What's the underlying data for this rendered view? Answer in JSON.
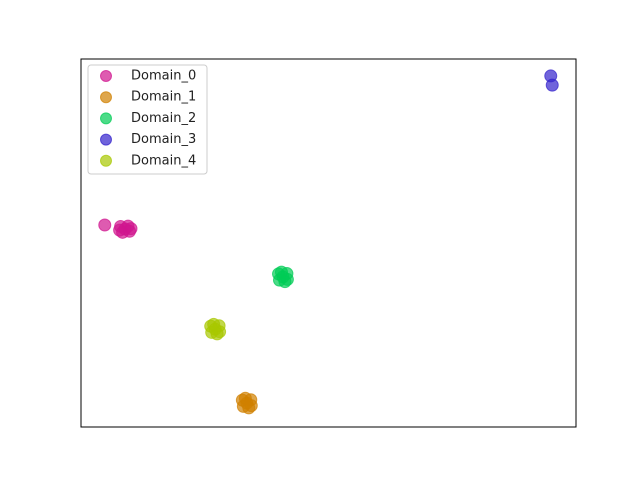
{
  "chart_data": {
    "type": "scatter",
    "xlim": [
      0,
      100
    ],
    "ylim": [
      0,
      100
    ],
    "legend": "upper left",
    "alpha": 0.7,
    "series": [
      {
        "name": "Domain_0",
        "color": "#d0158f",
        "x": [
          8.9,
          8.0,
          9.8,
          8.4,
          9.5,
          10.1,
          7.8,
          4.8
        ],
        "y": [
          53.8,
          54.5,
          53.2,
          52.9,
          54.6,
          53.9,
          53.5,
          54.9
        ]
      },
      {
        "name": "Domain_1",
        "color": "#d08000",
        "x": [
          33.5,
          32.6,
          34.4,
          32.8,
          34.3,
          33.2,
          33.9
        ],
        "y": [
          6.5,
          7.3,
          5.8,
          5.6,
          7.4,
          7.8,
          5.2
        ]
      },
      {
        "name": "Domain_2",
        "color": "#00cc55",
        "x": [
          40.8,
          39.9,
          41.7,
          40.1,
          41.6,
          40.5,
          41.2
        ],
        "y": [
          40.8,
          41.6,
          40.1,
          39.9,
          41.7,
          42.1,
          39.5
        ]
      },
      {
        "name": "Domain_3",
        "color": "#3322cc",
        "x": [
          94.9,
          95.2
        ],
        "y": [
          95.4,
          92.9
        ]
      },
      {
        "name": "Domain_4",
        "color": "#a8c800",
        "x": [
          27.1,
          26.2,
          28.0,
          26.4,
          27.9,
          26.8,
          27.5
        ],
        "y": [
          26.6,
          27.4,
          25.9,
          25.7,
          27.5,
          27.9,
          25.3
        ]
      }
    ]
  }
}
